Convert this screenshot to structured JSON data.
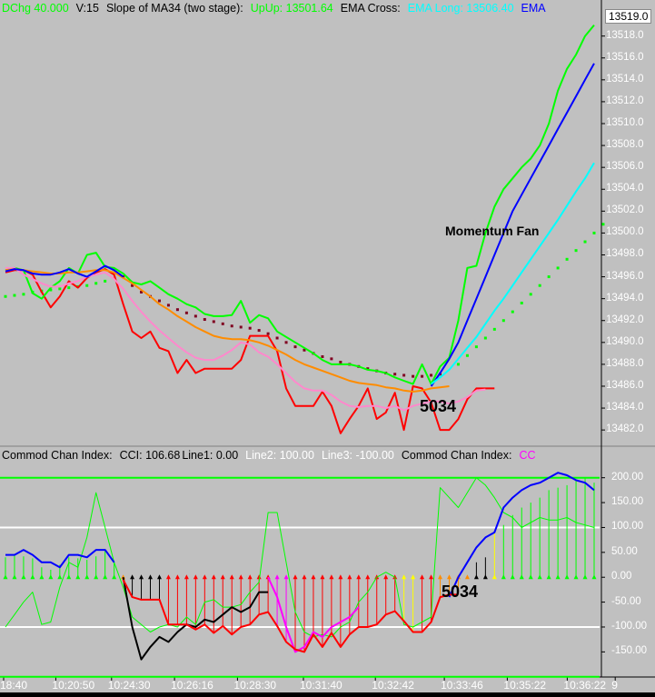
{
  "price_header": {
    "dchg": "DChg 40.000",
    "v": "V:15",
    "slope": "Slope of MA34 (two stage):",
    "upup": "UpUp: 13501.64",
    "ema_cross": "EMA Cross:",
    "ema_long": "EMA Long: 13506.40",
    "ema_tail": "EMA"
  },
  "cci_header": {
    "title": "Commod Chan Index:",
    "cci": "CCI: 106.68",
    "line1": "Line1: 0.00",
    "line2": "Line2: 100.00",
    "line3": "Line3: -100.00",
    "title2": "Commod Chan Index:",
    "tail": "CC"
  },
  "last_price": "13519.0",
  "annotations": {
    "momentum_fan": "Momentum Fan",
    "price_marker": "5034",
    "cci_marker": "5034"
  },
  "colors": {
    "green": "#00ff00",
    "blue": "#0000ff",
    "cyan": "#00ffff",
    "red": "#ff0000",
    "orange": "#ff8c00",
    "pink": "#ff88cc",
    "maroon": "#800020",
    "yellow": "#ffff00",
    "magenta": "#ff00ff",
    "white": "#ffffff",
    "black": "#000000",
    "panel_bg": "#c0c0c0"
  },
  "chart_data": [
    {
      "type": "line",
      "panel": "price",
      "y_ticks": [
        13482,
        13484,
        13486,
        13488,
        13490,
        13492,
        13494,
        13496,
        13498,
        13500,
        13502,
        13504,
        13506,
        13508,
        13510,
        13512,
        13514,
        13516,
        13518
      ],
      "ylim": [
        13480.6,
        13519.8
      ],
      "y_tick_labels": [
        "13482.0",
        "13484.0",
        "13486.0",
        "13488.0",
        "13490.0",
        "13492.0",
        "13494.0",
        "13496.0",
        "13498.0",
        "13500.0",
        "13502.0",
        "13504.0",
        "13506.0",
        "13508.0",
        "13510.0",
        "13512.0",
        "13514.0",
        "13516.0",
        "13518.0"
      ],
      "x_tick_labels": [
        "18:40",
        "10:20:50",
        "10:24:30",
        "10:26:16",
        "10:28:30",
        "10:31:40",
        "10:32:42",
        "10:33:46",
        "10:35:22",
        "10:36:22",
        "9"
      ],
      "n_bars": 66,
      "series": [
        {
          "color": "#ff0000",
          "start": 0,
          "values": [
            13496.4,
            13496.6,
            13496.6,
            13496.2,
            13494.6,
            13493.2,
            13494.2,
            13495.6,
            13495.0,
            13495.9,
            13496.4,
            13496.7,
            13496.2,
            13493.5,
            13491.0,
            13490.4,
            13491.0,
            13489.5,
            13489.2,
            13487.2,
            13488.4,
            13487.2,
            13487.6,
            13487.6,
            13487.6,
            13487.6,
            13488.4,
            13490.6,
            13490.6,
            13490.6,
            13489.2,
            13485.8,
            13484.2,
            13484.2,
            13484.2,
            13485.5,
            13484.2,
            13481.7,
            13483.0,
            13484.2,
            13485.8,
            13483.0,
            13483.6,
            13485.4,
            13482.0,
            13486.0,
            13485.8,
            13484.5,
            13482.0,
            13482.0,
            13483.0,
            13484.8,
            13485.8,
            13485.8,
            13485.8
          ]
        },
        {
          "color": "#00ff00",
          "start": 0,
          "values": [
            13496.6,
            13496.8,
            13496.6,
            13494.5,
            13494.0,
            13495.0,
            13495.6,
            13496.8,
            13496.3,
            13498.0,
            13498.2,
            13496.9,
            13496.8,
            13496.3,
            13495.5,
            13495.3,
            13495.6,
            13495.0,
            13494.4,
            13494.0,
            13493.5,
            13493.2,
            13492.6,
            13492.4,
            13492.4,
            13492.5,
            13493.8,
            13491.8,
            13492.5,
            13492.2,
            13491.0,
            13490.5,
            13490.0,
            13489.5,
            13489.0,
            13488.4,
            13488.0,
            13488.0,
            13488.0,
            13487.8,
            13487.5,
            13487.4,
            13487.2,
            13486.8,
            13486.5,
            13486.2,
            13488.0,
            13486.2,
            13487.8,
            13488.6,
            13492.0,
            13496.8,
            13497.0,
            13500.0,
            13502.4,
            13504.0,
            13505.0,
            13506.0,
            13506.8,
            13508.0,
            13510.0,
            13513.0,
            13515.0,
            13516.3,
            13518.0,
            13519.0
          ]
        },
        {
          "color": "#ff88cc",
          "start": 0,
          "values": [
            13496.8,
            13496.8,
            13496.2,
            13495.8,
            13495.4,
            13495.1,
            13495.1,
            13495.4,
            13495.6,
            13496.0,
            13496.2,
            13496.4,
            13495.8,
            13494.9,
            13493.8,
            13492.8,
            13491.9,
            13491.1,
            13490.4,
            13489.7,
            13489.1,
            13488.6,
            13488.4,
            13488.4,
            13488.8,
            13489.3,
            13490.0,
            13489.8,
            13489.1,
            13488.7,
            13488.0,
            13487.2,
            13486.4,
            13485.8,
            13485.6,
            13485.6,
            13485.2,
            13484.6,
            13484.2,
            13484.1,
            13484.2,
            13484.2,
            13484.0,
            13484.2,
            13483.8,
            13484.2,
            13484.4,
            13484.6,
            13484.6,
            13484.4,
            13484.6,
            13485.0,
            13485.6,
            13485.7
          ]
        },
        {
          "color": "#ff8c00",
          "start": 0,
          "values": [
            13496.6,
            13496.7,
            13496.6,
            13496.5,
            13496.4,
            13496.3,
            13496.3,
            13496.4,
            13496.4,
            13496.5,
            13496.6,
            13496.6,
            13496.4,
            13495.9,
            13495.4,
            13494.8,
            13494.2,
            13493.5,
            13493.0,
            13492.4,
            13491.9,
            13491.4,
            13491.0,
            13490.6,
            13490.4,
            13490.3,
            13490.3,
            13490.2,
            13490.0,
            13489.7,
            13489.3,
            13488.9,
            13488.4,
            13488.0,
            13487.7,
            13487.4,
            13487.1,
            13486.8,
            13486.5,
            13486.3,
            13486.2,
            13486.1,
            13485.9,
            13485.8,
            13485.6,
            13485.5,
            13485.6,
            13485.8,
            13485.9,
            13486.0
          ]
        },
        {
          "color": "#0000ff",
          "start": 0,
          "values": [
            13496.5,
            13496.7,
            13496.6,
            13496.3,
            13496.2,
            13496.2,
            13496.4,
            13496.7,
            13496.3,
            13496.0,
            13496.5,
            13497.0,
            13496.6,
            13496.0
          ],
          "gap_after": 13
        },
        {
          "color": "#0000ff",
          "start": 47,
          "values": [
            13486.0,
            13487.2,
            13488.5,
            13490.0,
            13492.0,
            13494.0,
            13496.0,
            13498.0,
            13500.0,
            13502.0,
            13503.5,
            13505.0,
            13506.5,
            13508.0,
            13509.5,
            13511.0,
            13512.5,
            13514.0,
            13515.5
          ]
        },
        {
          "color": "#00ffff",
          "start": 47,
          "values": [
            13486.2,
            13486.8,
            13487.5,
            13488.5,
            13489.5,
            13490.5,
            13491.7,
            13492.9,
            13494.0,
            13495.2,
            13496.4,
            13497.6,
            13498.8,
            13500.0,
            13501.2,
            13502.5,
            13503.8,
            13505.0,
            13506.4
          ]
        }
      ],
      "dotted_series": [
        {
          "color": "#800020",
          "start": 13,
          "values": [
            13496.0,
            13495.2,
            13494.6,
            13494.2,
            13493.8,
            13493.4,
            13493.0,
            13492.7,
            13492.4,
            13492.1,
            13491.9,
            13491.7,
            13491.5,
            13491.4,
            13491.3,
            13491.1,
            13490.8,
            13490.4,
            13490.0,
            13489.6,
            13489.3,
            13489.0,
            13488.7,
            13488.5,
            13488.2,
            13488.0,
            13487.8,
            13487.6,
            13487.4,
            13487.2,
            13487.1,
            13487.0,
            13486.9,
            13486.9,
            13487.0,
            13487.1
          ]
        },
        {
          "color": "#00ff00",
          "start": 0,
          "values": [
            13494.2,
            13494.3,
            13494.4,
            13494.6,
            13494.7,
            13494.8,
            13494.9,
            13495.0,
            13495.1,
            13495.2,
            13495.4,
            13495.6
          ],
          "gap_after": 11
        },
        {
          "color": "#00ff00",
          "start": 50,
          "values": [
            13488.0,
            13488.8,
            13489.6,
            13490.4,
            13491.2,
            13492.0,
            13492.8,
            13493.6,
            13494.4,
            13495.2,
            13496.0,
            13496.8,
            13497.6,
            13498.4,
            13499.2,
            13500.0,
            13500.8
          ]
        }
      ]
    },
    {
      "type": "line",
      "panel": "cci",
      "y_ticks": [
        -150,
        -100,
        -50,
        0,
        50,
        100,
        150,
        200
      ],
      "y_tick_labels": [
        "-150.00",
        "-100.00",
        "-50.00",
        "0.00",
        "50.00",
        "100.00",
        "150.00",
        "200.00"
      ],
      "ylim": [
        -195,
        225
      ],
      "levels": [
        {
          "value": 100,
          "color": "#ffffff"
        },
        {
          "value": -100,
          "color": "#ffffff"
        },
        {
          "value": 200,
          "color": "#00ff00"
        },
        {
          "value": -200,
          "color": "#00ff00"
        }
      ],
      "n_bars": 66,
      "histogram": [
        40,
        45,
        42,
        38,
        20,
        15,
        25,
        40,
        38,
        35,
        42,
        55,
        30,
        0,
        -40,
        -45,
        -45,
        -45,
        -95,
        -95,
        -95,
        -105,
        -95,
        -112,
        -98,
        -115,
        -100,
        -95,
        -75,
        -70,
        -98,
        -130,
        -145,
        -150,
        -115,
        -140,
        -112,
        -140,
        -115,
        -100,
        -100,
        -95,
        -75,
        -68,
        -88,
        -110,
        -110,
        -90,
        -40,
        -35,
        -35,
        0,
        30,
        40,
        90,
        105,
        125,
        140,
        150,
        160,
        175,
        180,
        185,
        195,
        200,
        190
      ],
      "histogram_colors": [
        "#00ff00",
        "#00ff00",
        "#00ff00",
        "#00ff00",
        "#00ff00",
        "#00ff00",
        "#00ff00",
        "#00ff00",
        "#00ff00",
        "#00ff00",
        "#00ff00",
        "#00ff00",
        "#00ff00",
        "#ff8c00",
        "#000000",
        "#000000",
        "#000000",
        "#000000",
        "#ff0000",
        "#ff0000",
        "#ff0000",
        "#ff0000",
        "#ff0000",
        "#ff0000",
        "#ff0000",
        "#ff0000",
        "#ff0000",
        "#ff0000",
        "#ff0000",
        "#ff0000",
        "#ff00ff",
        "#ff00ff",
        "#ff0000",
        "#ff0000",
        "#ff0000",
        "#ff0000",
        "#ff0000",
        "#ff0000",
        "#ff0000",
        "#ff0000",
        "#ff0000",
        "#ff0000",
        "#ff0000",
        "#ff0000",
        "#ffff00",
        "#ffff00",
        "#ff0000",
        "#ff0000",
        "#ff8c00",
        "#ff8c00",
        "#ff8c00",
        "#ff8c00",
        "#000000",
        "#000000",
        "#ffff00",
        "#00ff00",
        "#00ff00",
        "#00ff00",
        "#00ff00",
        "#00ff00",
        "#00ff00",
        "#00ff00",
        "#00ff00",
        "#00ff00",
        "#00ff00",
        "#00ff00"
      ],
      "series": [
        {
          "color": "#00ff00",
          "values": [
            -100,
            -75,
            -50,
            -30,
            -95,
            -90,
            -20,
            30,
            20,
            80,
            170,
            100,
            30,
            -20,
            -80,
            -95,
            -110,
            -100,
            -95,
            -100,
            -80,
            -95,
            -50,
            -45,
            -60,
            -60,
            -55,
            -30,
            -10,
            130,
            130,
            30,
            -70,
            -110,
            -120,
            -115,
            -120,
            -100,
            -90,
            -50,
            -30,
            0,
            10,
            0,
            -95,
            -100,
            -90,
            -80,
            180,
            160,
            140,
            170,
            200,
            185,
            160,
            130,
            120,
            100,
            110,
            120,
            115,
            115,
            120,
            110,
            105,
            100
          ]
        },
        {
          "color": "#000000",
          "values": [
            null,
            null,
            null,
            null,
            null,
            null,
            null,
            null,
            null,
            null,
            null,
            null,
            null,
            0,
            -100,
            -165,
            -140,
            -120,
            -130,
            -110,
            -95,
            -100,
            -85,
            -90,
            -75,
            -60,
            -70,
            -60,
            -30,
            -30,
            null,
            null,
            null,
            null,
            null,
            null,
            null,
            null,
            null,
            null,
            null,
            null,
            null,
            null,
            null,
            null,
            null,
            null,
            null,
            null,
            null,
            null,
            null,
            null,
            null,
            null,
            null,
            null,
            null,
            null,
            null,
            null,
            null,
            null,
            null,
            null
          ]
        },
        {
          "color": "#ff00ff",
          "values": [
            null,
            null,
            null,
            null,
            null,
            null,
            null,
            null,
            null,
            null,
            null,
            null,
            null,
            null,
            null,
            null,
            null,
            null,
            null,
            null,
            null,
            null,
            null,
            null,
            null,
            null,
            null,
            null,
            null,
            0,
            -40,
            -100,
            -150,
            -140,
            -110,
            -120,
            -100,
            -90,
            -80,
            -60,
            null,
            null,
            null,
            null,
            null,
            null,
            null,
            null,
            null,
            null,
            null,
            null,
            null,
            null,
            null,
            null,
            null,
            null,
            null,
            null,
            null,
            null,
            null,
            null,
            null,
            null
          ]
        },
        {
          "color": "#0000ff",
          "values": [
            45,
            45,
            55,
            45,
            30,
            30,
            20,
            45,
            45,
            40,
            55,
            55,
            30,
            null,
            null,
            null,
            null,
            null,
            null,
            null,
            null,
            null,
            null,
            null,
            null,
            null,
            null,
            null,
            null,
            null,
            null,
            null,
            null,
            null,
            null,
            null,
            null,
            null,
            null,
            null,
            null,
            null,
            null,
            null,
            null,
            null,
            null,
            null,
            null,
            -40,
            0,
            30,
            60,
            80,
            90,
            140,
            160,
            175,
            185,
            190,
            200,
            210,
            205,
            195,
            190,
            175
          ]
        },
        {
          "color": "#ff0000",
          "values": [
            null,
            null,
            null,
            null,
            null,
            null,
            null,
            null,
            null,
            null,
            null,
            null,
            null,
            -5,
            -40,
            -45,
            -45,
            -45,
            -95,
            -95,
            -95,
            -105,
            -95,
            -112,
            -98,
            -115,
            -100,
            -95,
            -75,
            -70,
            -98,
            -130,
            -145,
            -150,
            -115,
            -140,
            -112,
            -140,
            -115,
            -100,
            -100,
            -95,
            -75,
            -68,
            -88,
            -110,
            -110,
            -90,
            -40,
            -35,
            -35,
            null,
            null,
            null,
            null,
            null,
            null,
            null,
            null,
            null,
            null,
            null,
            null,
            null,
            null,
            null
          ]
        }
      ]
    }
  ]
}
